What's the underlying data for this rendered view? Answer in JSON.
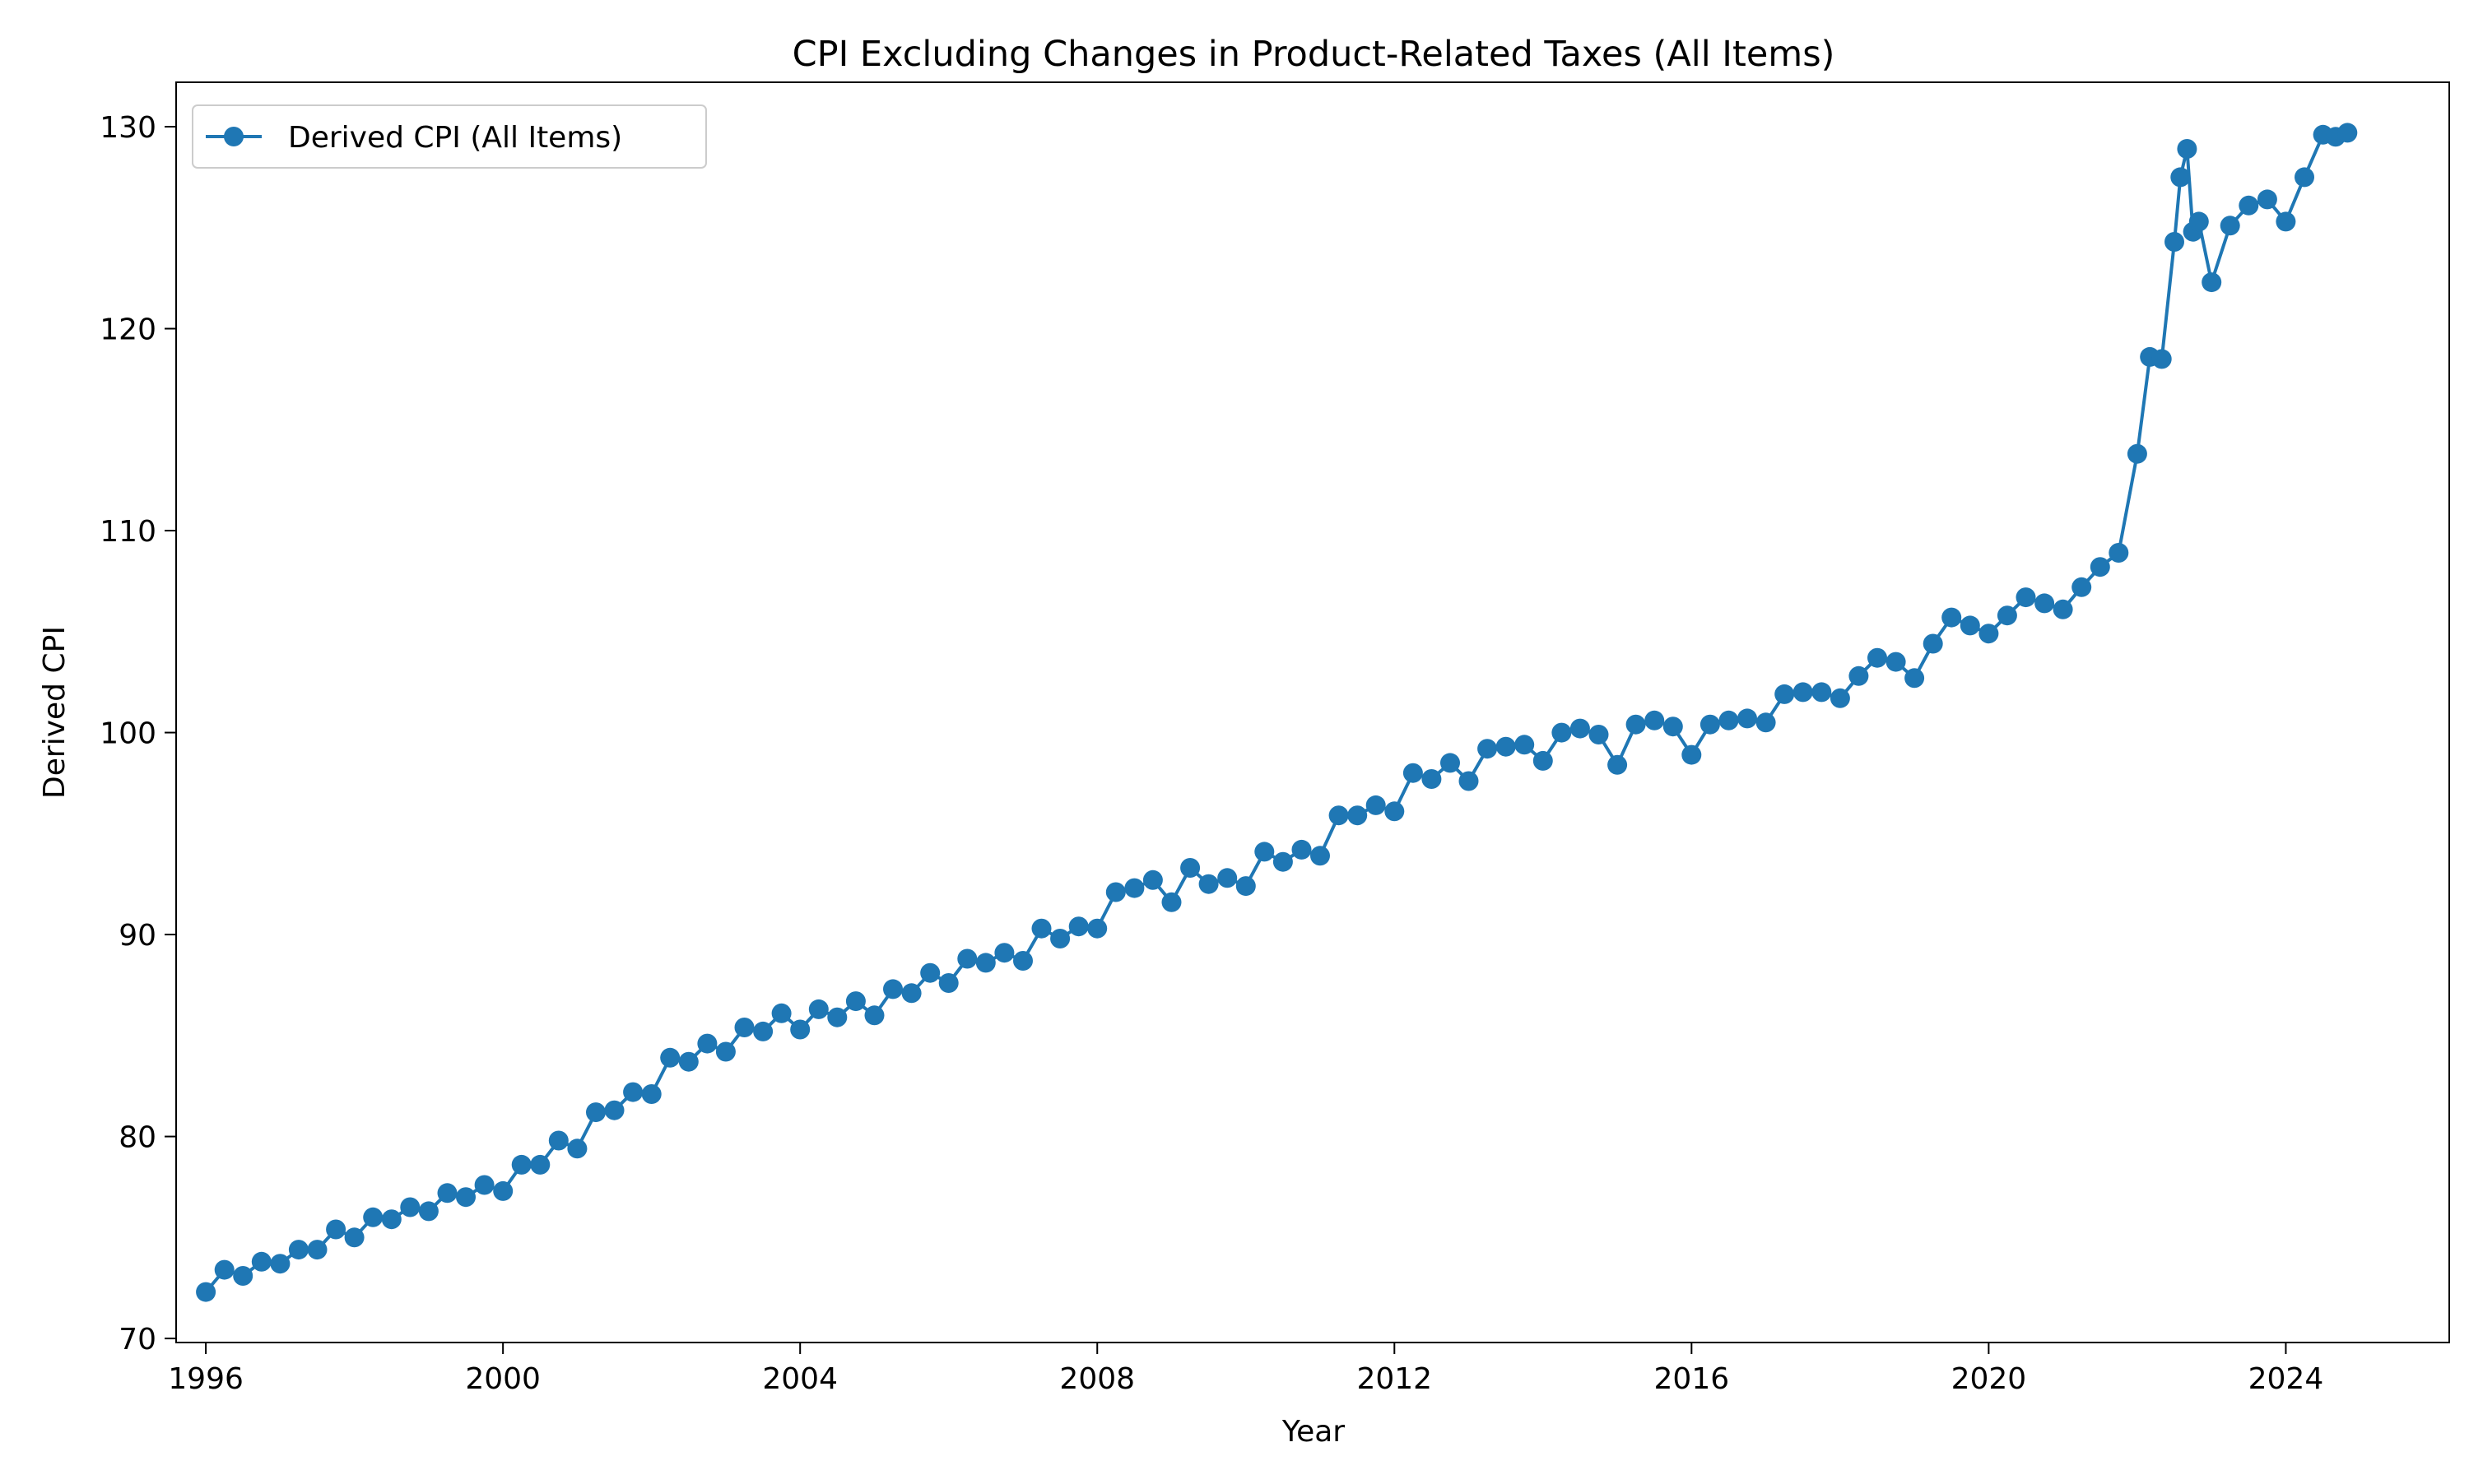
{
  "chart_data": {
    "type": "line",
    "title": "CPI Excluding Changes in Product-Related Taxes (All Items)",
    "xlabel": "Year",
    "ylabel": "Derived CPI",
    "xlim": [
      1995.6,
      2026.2
    ],
    "ylim": [
      69.8,
      132.2
    ],
    "x_ticks": [
      1996,
      2000,
      2004,
      2008,
      2012,
      2016,
      2020,
      2024
    ],
    "y_ticks": [
      70,
      80,
      90,
      100,
      110,
      120,
      130
    ],
    "grid": false,
    "legend_position": "top-left",
    "series": [
      {
        "name": "Derived CPI (All Items)",
        "color": "#1f77b4",
        "marker": "circle",
        "x": [
          1996.0,
          1996.25,
          1996.5,
          1996.75,
          1997.0,
          1997.25,
          1997.5,
          1997.75,
          1998.0,
          1998.25,
          1998.5,
          1998.75,
          1999.0,
          1999.25,
          1999.5,
          1999.75,
          2000.0,
          2000.25,
          2000.5,
          2000.75,
          2001.0,
          2001.25,
          2001.5,
          2001.75,
          2002.0,
          2002.25,
          2002.5,
          2002.75,
          2003.0,
          2003.25,
          2003.5,
          2003.75,
          2004.0,
          2004.25,
          2004.5,
          2004.75,
          2005.0,
          2005.25,
          2005.5,
          2005.75,
          2006.0,
          2006.25,
          2006.5,
          2006.75,
          2007.0,
          2007.25,
          2007.5,
          2007.75,
          2008.0,
          2008.25,
          2008.5,
          2008.75,
          2009.0,
          2009.25,
          2009.5,
          2009.75,
          2010.0,
          2010.25,
          2010.5,
          2010.75,
          2011.0,
          2011.25,
          2011.5,
          2011.75,
          2012.0,
          2012.25,
          2012.5,
          2012.75,
          2013.0,
          2013.25,
          2013.5,
          2013.75,
          2014.0,
          2014.25,
          2014.5,
          2014.75,
          2015.0,
          2015.25,
          2015.5,
          2015.75,
          2016.0,
          2016.25,
          2016.5,
          2016.75,
          2017.0,
          2017.25,
          2017.5,
          2017.75,
          2018.0,
          2018.25,
          2018.5,
          2018.75,
          2019.0,
          2019.25,
          2019.5,
          2019.75,
          2020.0,
          2020.25,
          2020.5,
          2020.75,
          2021.0,
          2021.25,
          2021.5,
          2021.75,
          2022.0,
          2022.17,
          2022.33,
          2022.5,
          2022.58,
          2022.67,
          2022.75,
          2022.83,
          2023.0,
          2023.25,
          2023.5,
          2023.75,
          2024.0,
          2024.25,
          2024.5,
          2024.67,
          2024.83
        ],
        "y": [
          72.3,
          73.4,
          73.1,
          73.8,
          73.7,
          74.4,
          74.4,
          75.4,
          75.0,
          76.0,
          75.9,
          76.5,
          76.3,
          77.2,
          77.0,
          77.6,
          77.3,
          78.6,
          78.6,
          79.8,
          79.4,
          81.2,
          81.3,
          82.2,
          82.1,
          83.9,
          83.7,
          84.6,
          84.2,
          85.4,
          85.2,
          86.1,
          85.3,
          86.3,
          85.9,
          86.7,
          86.0,
          87.3,
          87.1,
          88.1,
          87.6,
          88.8,
          88.6,
          89.1,
          88.7,
          90.3,
          89.8,
          90.4,
          90.3,
          92.1,
          92.3,
          92.7,
          91.6,
          93.3,
          92.5,
          92.8,
          92.4,
          94.1,
          93.6,
          94.2,
          93.9,
          95.9,
          95.9,
          96.4,
          96.1,
          98.0,
          97.7,
          98.5,
          97.6,
          99.2,
          99.3,
          99.4,
          98.6,
          100.0,
          100.2,
          99.9,
          98.4,
          100.4,
          100.6,
          100.3,
          98.9,
          100.4,
          100.6,
          100.7,
          100.5,
          101.9,
          102.0,
          102.0,
          101.7,
          102.8,
          103.7,
          103.5,
          102.7,
          104.4,
          105.7,
          105.3,
          104.9,
          105.8,
          106.7,
          106.4,
          106.1,
          107.2,
          108.2,
          108.9,
          113.8,
          118.6,
          118.5,
          124.3,
          127.5,
          128.9,
          124.8,
          125.3,
          122.3,
          125.1,
          126.1,
          126.4,
          125.3,
          127.5,
          129.6,
          129.5,
          129.7
        ]
      }
    ]
  }
}
